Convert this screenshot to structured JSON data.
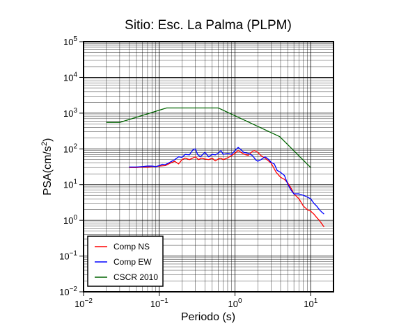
{
  "chart_data": {
    "type": "line",
    "title": "Sitio: Esc. La Palma (PLPM)",
    "xlabel": "Periodo (s)",
    "ylabel_main": "PSA(cm/s",
    "ylabel_sup": "2",
    "ylabel_close": ")",
    "xscale": "log",
    "yscale": "log",
    "xlim": [
      0.01,
      20
    ],
    "ylim": [
      0.01,
      100000
    ],
    "grid": true,
    "legend_position": "bottom-left",
    "x_ticks": [
      {
        "value": 0.01,
        "base": "10",
        "exp": "−2"
      },
      {
        "value": 0.1,
        "base": "10",
        "exp": "−1"
      },
      {
        "value": 1,
        "base": "10",
        "exp": "0"
      },
      {
        "value": 10,
        "base": "10",
        "exp": "1"
      }
    ],
    "y_ticks": [
      {
        "value": 0.01,
        "base": "10",
        "exp": "−2"
      },
      {
        "value": 0.1,
        "base": "10",
        "exp": "−1"
      },
      {
        "value": 1,
        "base": "10",
        "exp": "0"
      },
      {
        "value": 10,
        "base": "10",
        "exp": "1"
      },
      {
        "value": 100,
        "base": "10",
        "exp": "2"
      },
      {
        "value": 1000,
        "base": "10",
        "exp": "3"
      },
      {
        "value": 10000,
        "base": "10",
        "exp": "4"
      },
      {
        "value": 100000,
        "base": "10",
        "exp": "5"
      }
    ],
    "series": [
      {
        "name": "Comp NS",
        "color": "#ff0000",
        "points": [
          [
            0.04,
            30
          ],
          [
            0.05,
            30
          ],
          [
            0.06,
            31
          ],
          [
            0.07,
            31
          ],
          [
            0.08,
            32
          ],
          [
            0.09,
            32
          ],
          [
            0.1,
            33
          ],
          [
            0.12,
            34
          ],
          [
            0.14,
            40
          ],
          [
            0.16,
            45
          ],
          [
            0.18,
            38
          ],
          [
            0.2,
            50
          ],
          [
            0.22,
            55
          ],
          [
            0.25,
            50
          ],
          [
            0.28,
            56
          ],
          [
            0.3,
            60
          ],
          [
            0.33,
            50
          ],
          [
            0.36,
            55
          ],
          [
            0.4,
            52
          ],
          [
            0.45,
            50
          ],
          [
            0.5,
            55
          ],
          [
            0.55,
            46
          ],
          [
            0.6,
            52
          ],
          [
            0.65,
            55
          ],
          [
            0.7,
            50
          ],
          [
            0.8,
            56
          ],
          [
            0.9,
            65
          ],
          [
            1.0,
            75
          ],
          [
            1.1,
            90
          ],
          [
            1.2,
            80
          ],
          [
            1.3,
            72
          ],
          [
            1.4,
            68
          ],
          [
            1.5,
            66
          ],
          [
            1.7,
            85
          ],
          [
            1.8,
            90
          ],
          [
            2.0,
            80
          ],
          [
            2.2,
            65
          ],
          [
            2.5,
            55
          ],
          [
            3.0,
            40
          ],
          [
            3.5,
            22
          ],
          [
            4.0,
            16
          ],
          [
            4.5,
            14
          ],
          [
            5.0,
            11
          ],
          [
            5.5,
            8
          ],
          [
            6.0,
            5.5
          ],
          [
            7.0,
            4
          ],
          [
            8.0,
            2.5
          ],
          [
            9.0,
            2
          ],
          [
            10.0,
            1.8
          ],
          [
            11.0,
            1.5
          ],
          [
            12.0,
            1.2
          ],
          [
            13.0,
            1.0
          ],
          [
            14.0,
            0.8
          ],
          [
            15.0,
            0.65
          ]
        ]
      },
      {
        "name": "Comp EW",
        "color": "#0000ff",
        "points": [
          [
            0.04,
            31
          ],
          [
            0.05,
            31
          ],
          [
            0.06,
            32
          ],
          [
            0.07,
            33
          ],
          [
            0.08,
            33
          ],
          [
            0.09,
            32
          ],
          [
            0.1,
            34
          ],
          [
            0.11,
            37
          ],
          [
            0.12,
            36
          ],
          [
            0.14,
            43
          ],
          [
            0.16,
            50
          ],
          [
            0.18,
            60
          ],
          [
            0.2,
            58
          ],
          [
            0.22,
            70
          ],
          [
            0.25,
            68
          ],
          [
            0.28,
            95
          ],
          [
            0.3,
            100
          ],
          [
            0.32,
            70
          ],
          [
            0.35,
            60
          ],
          [
            0.4,
            80
          ],
          [
            0.45,
            60
          ],
          [
            0.5,
            70
          ],
          [
            0.55,
            68
          ],
          [
            0.6,
            75
          ],
          [
            0.65,
            90
          ],
          [
            0.7,
            70
          ],
          [
            0.8,
            75
          ],
          [
            0.9,
            70
          ],
          [
            1.0,
            90
          ],
          [
            1.1,
            110
          ],
          [
            1.2,
            95
          ],
          [
            1.3,
            80
          ],
          [
            1.5,
            75
          ],
          [
            1.7,
            65
          ],
          [
            1.9,
            48
          ],
          [
            2.0,
            45
          ],
          [
            2.2,
            50
          ],
          [
            2.5,
            60
          ],
          [
            2.8,
            50
          ],
          [
            3.0,
            42
          ],
          [
            3.3,
            38
          ],
          [
            3.6,
            25
          ],
          [
            4.0,
            22
          ],
          [
            4.5,
            18
          ],
          [
            5.0,
            10
          ],
          [
            5.5,
            7
          ],
          [
            6.0,
            5.5
          ],
          [
            7.0,
            5.5
          ],
          [
            8.0,
            5
          ],
          [
            9.0,
            4.5
          ],
          [
            10.0,
            4
          ],
          [
            11.0,
            3
          ],
          [
            12.0,
            2.5
          ],
          [
            13.0,
            2
          ],
          [
            14.0,
            1.7
          ],
          [
            15.0,
            1.5
          ]
        ]
      },
      {
        "name": "CSCR 2010",
        "color": "#006400",
        "points": [
          [
            0.02,
            550
          ],
          [
            0.03,
            550
          ],
          [
            0.125,
            1400
          ],
          [
            0.6,
            1400
          ],
          [
            3.9,
            220
          ],
          [
            10.0,
            30
          ]
        ]
      }
    ]
  }
}
